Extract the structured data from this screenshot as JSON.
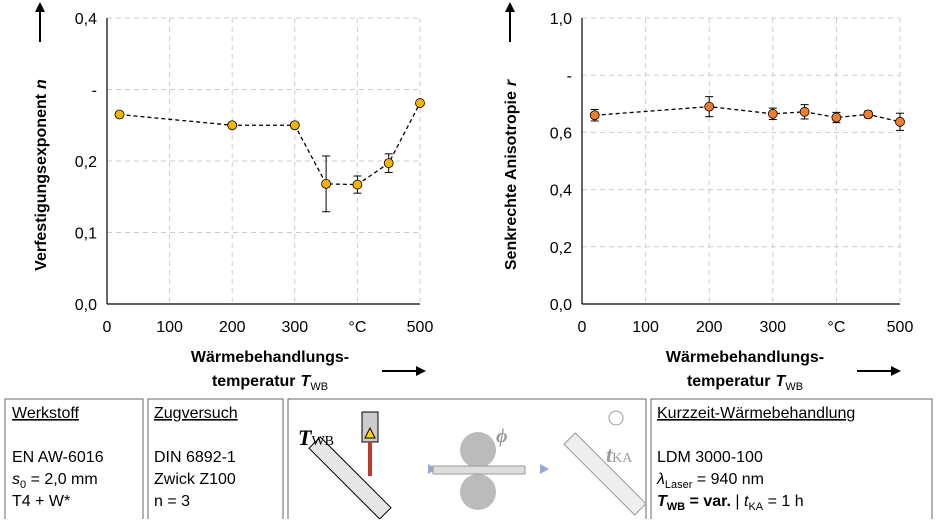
{
  "chart_data": [
    {
      "type": "scatter",
      "y_label": "Verfestigungsexponent",
      "y_label_symbol": "n",
      "x_label_lines": [
        "Wärmebehandlungs-",
        "temperatur"
      ],
      "x_label_symbol": "T",
      "x_label_subscript": "WB",
      "xlim": [
        0,
        500
      ],
      "xticks": [
        0,
        100,
        200,
        300,
        {
          "value": 400,
          "label": "°C"
        },
        500
      ],
      "ylim": [
        0,
        0.4
      ],
      "yticks": [
        {
          "value": 0,
          "label": "0,0"
        },
        {
          "value": 0.1,
          "label": "0,1"
        },
        {
          "value": 0.2,
          "label": "0,2"
        },
        {
          "value": 0.3,
          "label": "-"
        },
        {
          "value": 0.4,
          "label": "0,4"
        }
      ],
      "grid": true,
      "series": [
        {
          "color": "#f5b400",
          "x": [
            20,
            200,
            300,
            350,
            400,
            450,
            500
          ],
          "values": [
            0.265,
            0.25,
            0.25,
            0.168,
            0.167,
            0.197,
            0.281
          ],
          "errors": [
            0.003,
            0.003,
            0.003,
            0.039,
            0.012,
            0.013,
            0.003
          ]
        }
      ]
    },
    {
      "type": "scatter",
      "y_label": "Senkrechte Anisotropie",
      "y_label_symbol": "r",
      "x_label_lines": [
        "Wärmebehandlungs-",
        "temperatur"
      ],
      "x_label_symbol": "T",
      "x_label_subscript": "WB",
      "xlim": [
        0,
        500
      ],
      "xticks": [
        0,
        100,
        200,
        300,
        {
          "value": 400,
          "label": "°C"
        },
        500
      ],
      "ylim": [
        0,
        1
      ],
      "yticks": [
        {
          "value": 0,
          "label": "0,0"
        },
        {
          "value": 0.2,
          "label": "0,2"
        },
        {
          "value": 0.4,
          "label": "0,4"
        },
        {
          "value": 0.6,
          "label": "0,6"
        },
        {
          "value": 0.8,
          "label": "-"
        },
        {
          "value": 1,
          "label": "1,0"
        }
      ],
      "grid": true,
      "series": [
        {
          "color": "#f07d2a",
          "x": [
            20,
            200,
            300,
            350,
            400,
            450,
            500
          ],
          "values": [
            0.66,
            0.69,
            0.665,
            0.672,
            0.652,
            0.663,
            0.637
          ],
          "errors": [
            0.02,
            0.035,
            0.02,
            0.025,
            0.018,
            0.012,
            0.03
          ]
        }
      ]
    }
  ],
  "boxes": {
    "material": {
      "title": "Werkstoff",
      "line1": "EN AW-6016",
      "line2": [
        "s",
        "0",
        " = 2,0 mm"
      ],
      "line3": "T4 + W*"
    },
    "test": {
      "title": "Zugversuch",
      "line1": "DIN 6892-1",
      "line2": "Zwick Z100",
      "line3": "n = 3"
    },
    "process": {
      "t_wb": [
        "T",
        "WB"
      ],
      "phi": "ϕ",
      "t_ka": [
        "t",
        "KA"
      ]
    },
    "heat": {
      "title": "Kurzzeit-Wärmebehandlung",
      "line1": "LDM 3000-100",
      "line2": [
        "λ",
        "Laser",
        " = 940 nm"
      ],
      "line3": [
        "T",
        "WB",
        " = var.",
        " | ",
        "t",
        "KA",
        " = 1 h"
      ]
    }
  }
}
